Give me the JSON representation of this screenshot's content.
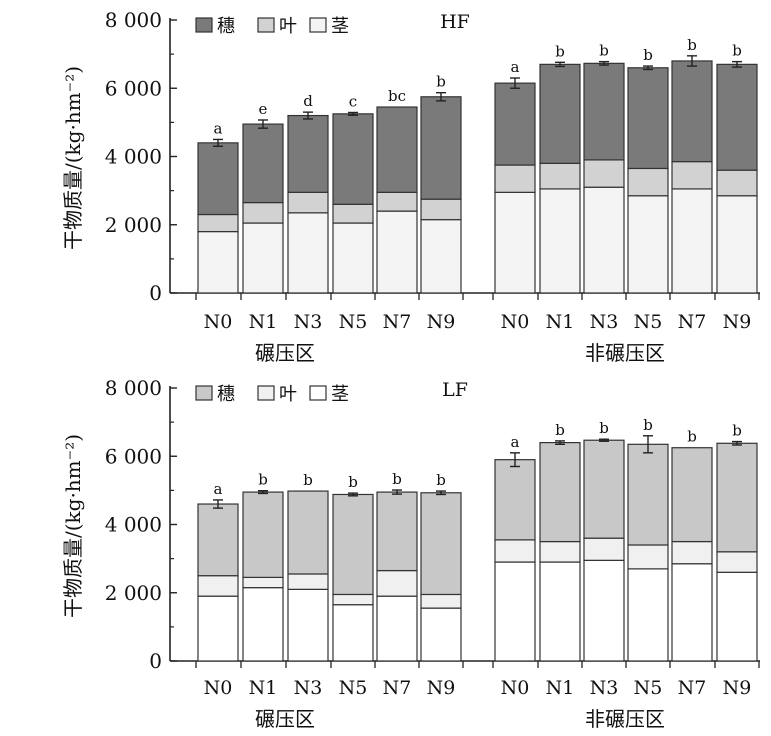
{
  "chart_data": [
    {
      "type": "bar",
      "stacked": true,
      "title": "HF",
      "ylabel": "干物质量/(kg·hm⁻²)",
      "ylim": [
        0,
        8000
      ],
      "yticks": [
        "0",
        "2 000",
        "4 000",
        "6 000",
        "8 000"
      ],
      "groups": [
        {
          "label": "碾压区",
          "categories": [
            "N0",
            "N1",
            "N3",
            "N5",
            "N7",
            "N9"
          ]
        },
        {
          "label": "非碾压区",
          "categories": [
            "N0",
            "N1",
            "N3",
            "N5",
            "N7",
            "N9"
          ]
        }
      ],
      "series": [
        {
          "name": "茎",
          "color": "#f4f4f4",
          "values": [
            1800,
            2050,
            2350,
            2050,
            2400,
            2150,
            2950,
            3050,
            3100,
            2850,
            3050,
            2850
          ]
        },
        {
          "name": "叶",
          "color": "#d2d2d2",
          "values": [
            500,
            600,
            600,
            550,
            550,
            600,
            800,
            750,
            800,
            800,
            800,
            750
          ]
        },
        {
          "name": "穗",
          "color": "#7a7a7a",
          "values": [
            2100,
            2300,
            2250,
            2650,
            2500,
            3000,
            2400,
            2900,
            2830,
            2950,
            2950,
            3100
          ]
        }
      ],
      "totals": [
        4400,
        4950,
        5200,
        5250,
        5450,
        5750,
        6150,
        6700,
        6730,
        6600,
        6800,
        6700
      ],
      "error": [
        100,
        120,
        100,
        40,
        0,
        120,
        150,
        60,
        50,
        50,
        150,
        80
      ],
      "significance": [
        "a",
        "e",
        "d",
        "c",
        "bc",
        "b",
        "a",
        "b",
        "b",
        "b",
        "b",
        "b"
      ],
      "legend": [
        {
          "label": "穗",
          "color": "#7a7a7a"
        },
        {
          "label": "叶",
          "color": "#d2d2d2"
        },
        {
          "label": "茎",
          "color": "#f4f4f4"
        }
      ]
    },
    {
      "type": "bar",
      "stacked": true,
      "title": "LF",
      "ylabel": "干物质量/(kg·hm⁻²)",
      "ylim": [
        0,
        8000
      ],
      "yticks": [
        "0",
        "2 000",
        "4 000",
        "6 000",
        "8 000"
      ],
      "groups": [
        {
          "label": "碾压区",
          "categories": [
            "N0",
            "N1",
            "N3",
            "N5",
            "N7",
            "N9"
          ]
        },
        {
          "label": "非碾压区",
          "categories": [
            "N0",
            "N1",
            "N3",
            "N5",
            "N7",
            "N9"
          ]
        }
      ],
      "series": [
        {
          "name": "茎",
          "color": "#ffffff",
          "values": [
            1900,
            2150,
            2100,
            1650,
            1900,
            1550,
            2900,
            2900,
            2950,
            2700,
            2850,
            2600
          ]
        },
        {
          "name": "叶",
          "color": "#f0f0f0",
          "values": [
            600,
            300,
            450,
            300,
            750,
            400,
            650,
            600,
            650,
            700,
            650,
            600
          ]
        },
        {
          "name": "穗",
          "color": "#c8c8c8",
          "values": [
            2100,
            2500,
            2430,
            2930,
            2300,
            2980,
            2350,
            2900,
            2870,
            2950,
            2750,
            3180
          ]
        }
      ],
      "totals": [
        4600,
        4950,
        4980,
        4880,
        4950,
        4930,
        5900,
        6400,
        6470,
        6350,
        6250,
        6380
      ],
      "error": [
        120,
        40,
        0,
        40,
        60,
        50,
        200,
        50,
        30,
        250,
        0,
        50
      ],
      "significance": [
        "a",
        "b",
        "b",
        "b",
        "b",
        "b",
        "a",
        "b",
        "b",
        "b",
        "b",
        "b"
      ],
      "legend": [
        {
          "label": "穗",
          "color": "#c8c8c8"
        },
        {
          "label": "叶",
          "color": "#f0f0f0"
        },
        {
          "label": "茎",
          "color": "#ffffff"
        }
      ]
    }
  ]
}
